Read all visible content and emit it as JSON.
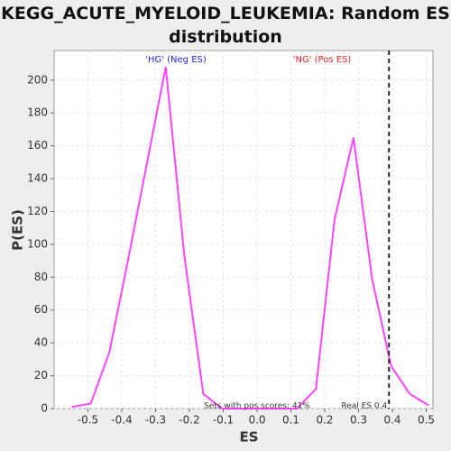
{
  "chart_data": {
    "type": "line",
    "title": "KEGG_ACUTE_MYELOID_LEUKEMIA: Random ES distribution",
    "x_label": "ES",
    "y_label": "P(ES)",
    "x": [
      -0.548,
      -0.492,
      -0.437,
      -0.381,
      -0.326,
      -0.27,
      -0.215,
      -0.159,
      -0.104,
      -0.048,
      0.007,
      0.063,
      0.118,
      0.174,
      0.229,
      0.285,
      0.34,
      0.396,
      0.451,
      0.507
    ],
    "series": [
      {
        "color": "#ff44ff",
        "values": [
          1,
          3,
          34,
          91,
          149,
          208,
          93,
          9,
          0,
          0,
          0,
          0,
          0,
          12,
          115,
          165,
          79,
          26,
          9,
          2
        ]
      }
    ],
    "xlim": [
      -0.6,
      0.52
    ],
    "ylim": [
      0,
      218
    ],
    "xticks": [
      -0.5,
      -0.4,
      -0.3,
      -0.2,
      -0.1,
      {
        "value": 0,
        "label": "0.0"
      },
      0.1,
      0.2,
      0.3,
      0.4,
      0.5
    ],
    "yticks": [
      0,
      20,
      40,
      60,
      80,
      100,
      120,
      140,
      160,
      180,
      200
    ],
    "grid": true,
    "neg_label": {
      "text": "'HG' (Neg ES)",
      "color": "#2222ee"
    },
    "pos_label": {
      "text": "'NG' (Pos ES)",
      "color": "#ee2222"
    },
    "pos_scores": "Sets with pos scores: 41%",
    "real_es": {
      "value": 0.39,
      "label": "Real ES 0.4"
    }
  }
}
